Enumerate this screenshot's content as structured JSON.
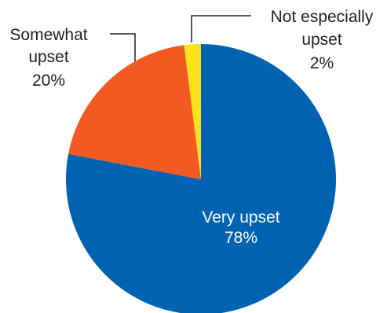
{
  "chart_data": {
    "type": "pie",
    "title": "",
    "start_angle_deg": 0,
    "direction": "clockwise",
    "slices": [
      {
        "key": "very",
        "label": "Very upset",
        "value": 78,
        "value_label": "78%",
        "color": "#0063b2",
        "label_position": "inside",
        "text_color": "#ffffff"
      },
      {
        "key": "somewhat",
        "label": "Somewhat upset",
        "label_lines": [
          "Somewhat",
          "upset"
        ],
        "value": 20,
        "value_label": "20%",
        "color": "#f25a22",
        "label_position": "outside-left",
        "text_color": "#231f20"
      },
      {
        "key": "notespecially",
        "label": "Not especially upset",
        "label_lines": [
          "Not especially",
          "upset"
        ],
        "value": 2,
        "value_label": "2%",
        "color": "#ffe11a",
        "label_position": "outside-right",
        "text_color": "#231f20"
      }
    ]
  }
}
